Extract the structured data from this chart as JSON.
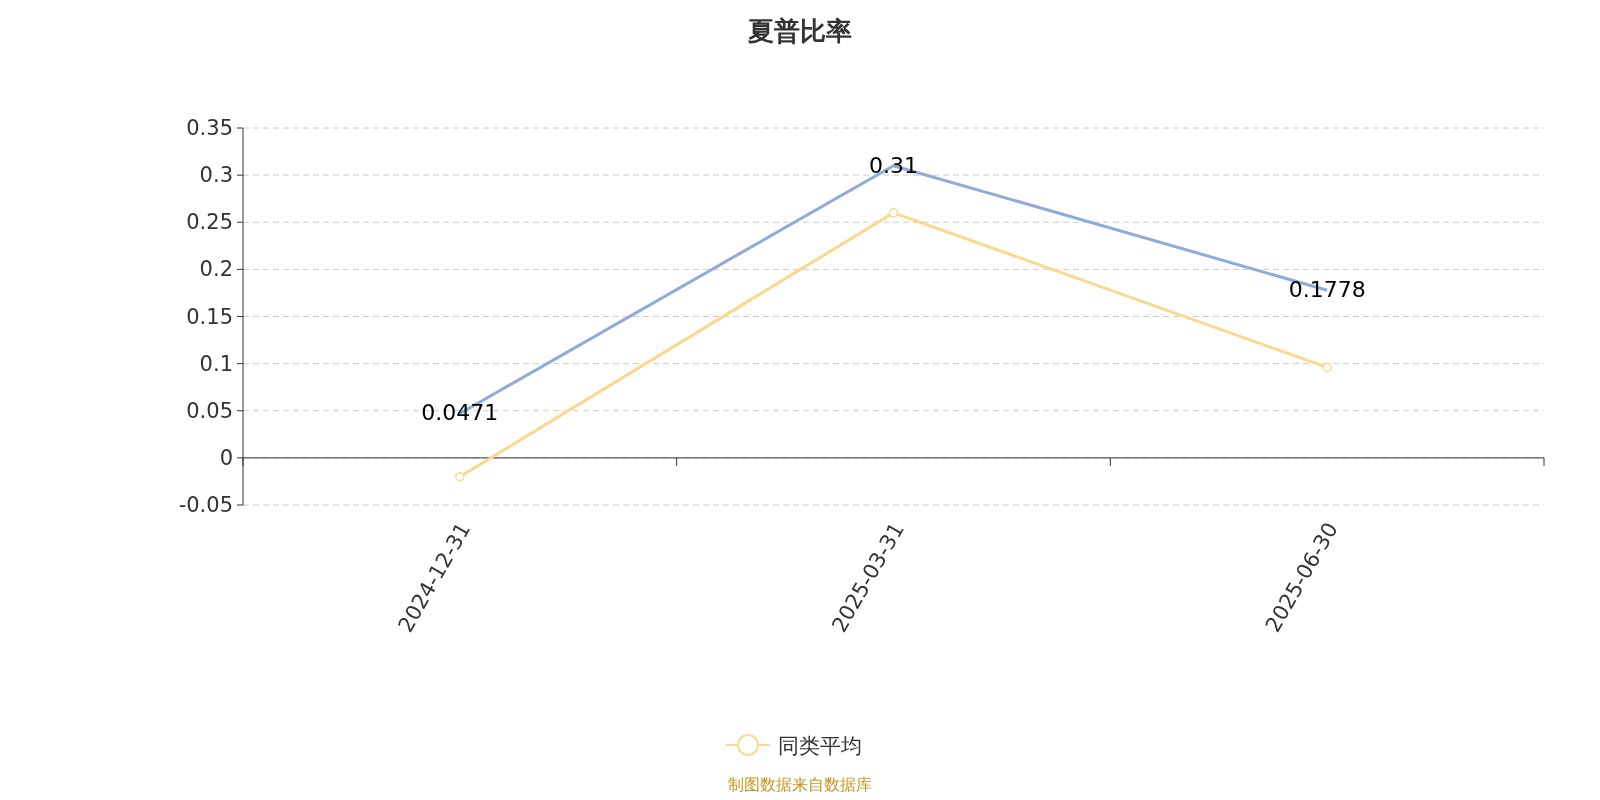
{
  "chart_data": {
    "type": "line",
    "title": "夏普比率",
    "categories": [
      "2024-12-31",
      "2025-03-31",
      "2025-06-30"
    ],
    "series": [
      {
        "color": "#8eacd9",
        "values": [
          0.0471,
          0.31,
          0.1778
        ],
        "value_labels": [
          "0.0471",
          "0.31",
          "0.1778"
        ],
        "marker": "none"
      },
      {
        "name": "同类平均",
        "color": "#fcd88f",
        "values": [
          -0.02,
          0.26,
          0.096
        ],
        "marker": "circle"
      }
    ],
    "ylim": [
      -0.05,
      0.35
    ],
    "yticks": [
      -0.05,
      0,
      0.05,
      0.1,
      0.15,
      0.2,
      0.25,
      0.3,
      0.35
    ],
    "grid": "y",
    "legend": "bottom",
    "line_style": "solid",
    "annotations": [
      "制图数据来自数据库"
    ]
  }
}
